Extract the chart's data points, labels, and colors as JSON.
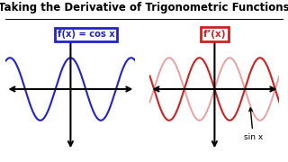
{
  "title": "Taking the Derivative of Trigonometric Functions",
  "title_fontsize": 8.5,
  "bg_color": "#ffffff",
  "left_label": "f(x) = cos x",
  "right_label": "f’(x)",
  "sin_label": "sin x",
  "left_box_color": "#2222cc",
  "right_box_color": "#cc2222",
  "cos_color": "#2222cc",
  "sin_dark_color": "#cc2222",
  "sin_light_color": "#e8a0a0",
  "amplitude": 0.52,
  "x_range": [
    -4.2,
    4.2
  ],
  "freq": 1.6
}
